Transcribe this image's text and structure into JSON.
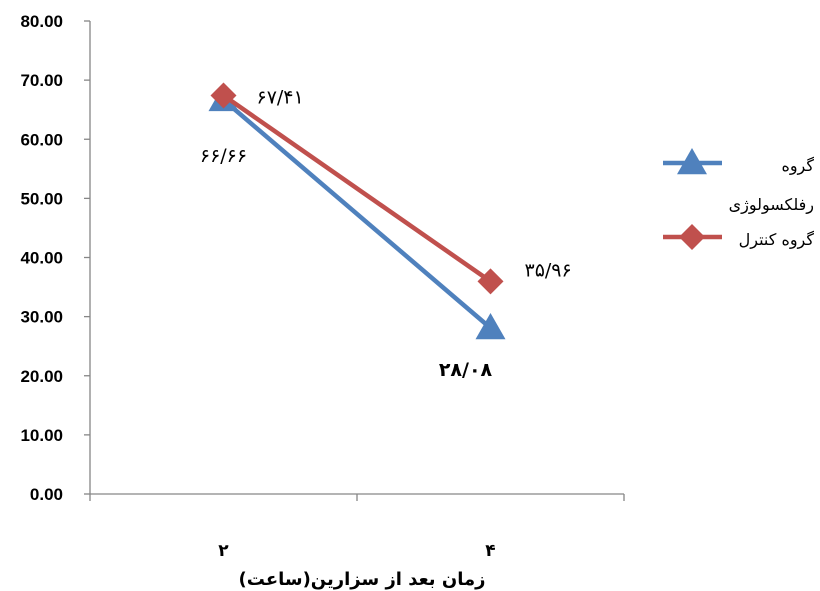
{
  "chart_data": {
    "type": "line",
    "xlabel": "زمان بعد از سزارین(ساعت)",
    "ylabel": "",
    "ylim": [
      0,
      80
    ],
    "y_tick_labels": [
      "0.00",
      "10.00",
      "20.00",
      "30.00",
      "40.00",
      "50.00",
      "60.00",
      "70.00",
      "80.00"
    ],
    "categories": [
      "۲",
      "۴"
    ],
    "grid": false,
    "legend_position": "right",
    "series": [
      {
        "name": "گروه رفلکسولوژی",
        "legend_lines": [
          "گروه",
          "رفلکسولوژی"
        ],
        "values": [
          66.66,
          28.08
        ],
        "data_labels": [
          "۶۶/۶۶",
          "۲۸/۰۸"
        ],
        "color": "#4F81BD",
        "marker": "triangle"
      },
      {
        "name": "گروه کنترل",
        "legend_lines": [
          "گروه کنترل"
        ],
        "values": [
          67.41,
          35.96
        ],
        "data_labels": [
          "۶۷/۴۱",
          "۳۵/۹۶"
        ],
        "color": "#C0504D",
        "marker": "diamond"
      }
    ]
  }
}
